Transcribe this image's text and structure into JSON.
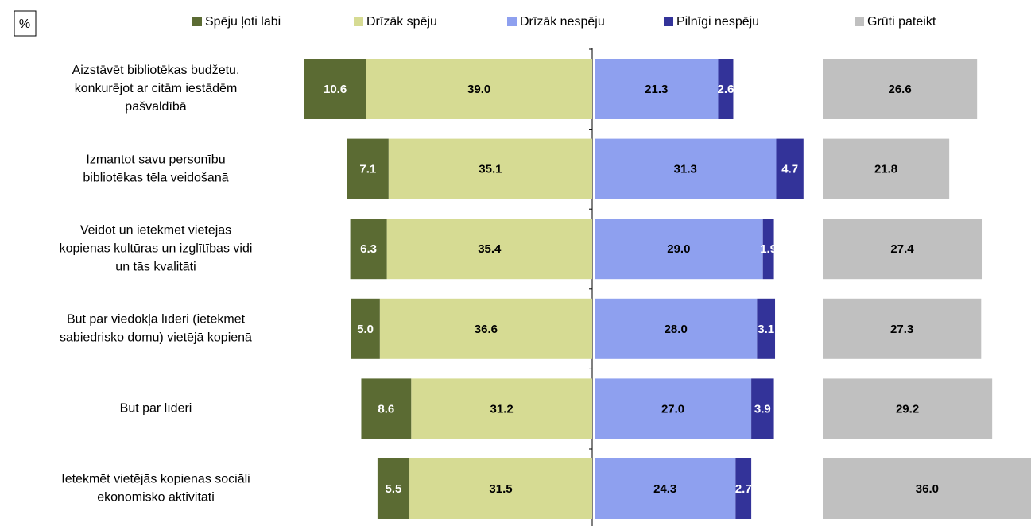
{
  "chart_data": {
    "type": "diverging-bar",
    "unit_label": "%",
    "categories": [
      [
        "Aizstāvēt bibliotēkas budžetu,",
        "konkurējot ar citām iestādēm",
        "pašvaldībā"
      ],
      [
        "Izmantot savu personību",
        "bibliotēkas tēla veidošanā"
      ],
      [
        "Veidot un ietekmēt vietējās",
        "kopienas kultūras un izglītības vidi",
        "un tās kvalitāti"
      ],
      [
        "Būt par viedokļa līderi (ietekmēt",
        "sabiedrisko domu) vietējā kopienā"
      ],
      [
        "Būt par līderi"
      ],
      [
        "Ietekmēt vietējās kopienas sociāli",
        "ekonomisko aktivitāti"
      ]
    ],
    "series": [
      {
        "name": "Spēju ļoti labi",
        "color": "#5b6b33",
        "values": [
          10.6,
          7.1,
          6.3,
          5.0,
          8.6,
          5.5
        ],
        "value_labels": [
          "10.6",
          "7.1",
          "6.3",
          "5.0",
          "8.6",
          "5.5"
        ]
      },
      {
        "name": "Drīzāk spēju",
        "color": "#d6db93",
        "values": [
          39.0,
          35.1,
          35.4,
          36.6,
          31.2,
          31.5
        ],
        "value_labels": [
          "39.0",
          "35.1",
          "35.4",
          "36.6",
          "31.2",
          "31.5"
        ]
      },
      {
        "name": "Drīzāk nespēju",
        "color": "#8ea0ef",
        "values": [
          21.3,
          31.3,
          29.0,
          28.0,
          27.0,
          24.3
        ],
        "value_labels": [
          "21.3",
          "31.3",
          "29.0",
          "28.0",
          "27.0",
          "24.3"
        ]
      },
      {
        "name": "Pilnīgi nespēju",
        "color": "#333399",
        "values": [
          2.6,
          4.7,
          1.9,
          3.1,
          3.9,
          2.7
        ],
        "value_labels": [
          "2.6",
          "4.7",
          "1.9",
          "3.1",
          "3.9",
          "2.7"
        ]
      },
      {
        "name": "Grūti pateikt",
        "color": "#c0c0c0",
        "values": [
          26.6,
          21.8,
          27.4,
          27.3,
          29.2,
          36.0
        ],
        "value_labels": [
          "26.6",
          "21.8",
          "27.4",
          "27.3",
          "29.2",
          "36.0"
        ]
      }
    ]
  }
}
